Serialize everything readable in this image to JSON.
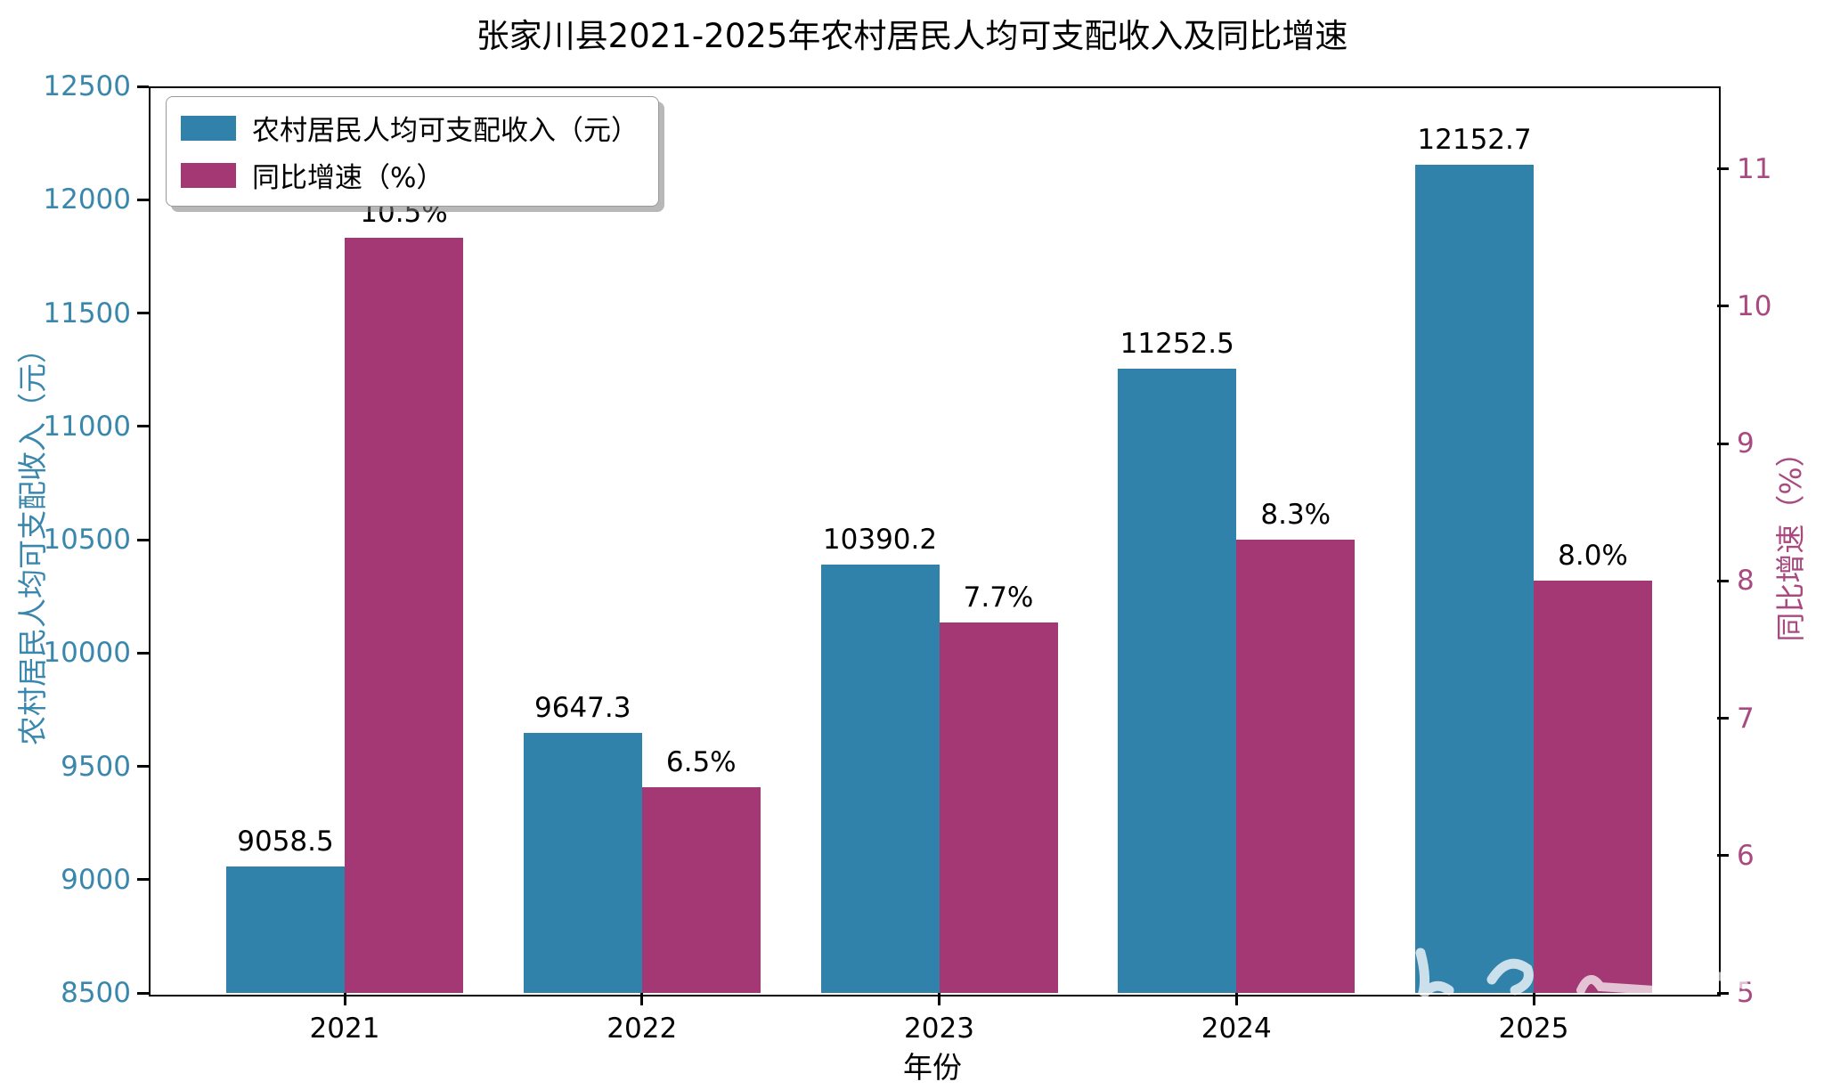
{
  "title": "张家川县2021-2025年农村居民人均可支配收入及同比增速",
  "chart_data": {
    "type": "bar",
    "categories": [
      "2021",
      "2022",
      "2023",
      "2024",
      "2025"
    ],
    "series": [
      {
        "name": "农村居民人均可支配收入（元）",
        "axis": "left",
        "color": "#3182ab",
        "values": [
          9058.5,
          9647.3,
          10390.2,
          11252.5,
          12152.7
        ],
        "labels": [
          "9058.5",
          "9647.3",
          "10390.2",
          "11252.5",
          "12152.7"
        ]
      },
      {
        "name": "同比增速（%）",
        "axis": "right",
        "color": "#a33874",
        "values": [
          10.5,
          6.5,
          7.7,
          8.3,
          8.0
        ],
        "labels": [
          "10.5%",
          "6.5%",
          "7.7%",
          "8.3%",
          "8.0%"
        ]
      }
    ],
    "xlabel": "年份",
    "ylabel_left": "农村居民人均可支配收入（元）",
    "ylabel_right": "同比增速（%）",
    "left_axis": {
      "min": 8500,
      "max": 12500,
      "ticks": [
        8500,
        9000,
        9500,
        10000,
        10500,
        11000,
        11500,
        12000,
        12500
      ]
    },
    "right_axis": {
      "min": 5,
      "display_max": 11.6,
      "ticks": [
        5,
        6,
        7,
        8,
        9,
        10,
        11
      ]
    },
    "legend_position": "upper left",
    "grid": false,
    "tick_label_color_left": "#3a87ad",
    "tick_label_color_right": "#a84a80",
    "watermark_color": "rgba(255,255,255,0.75)"
  }
}
